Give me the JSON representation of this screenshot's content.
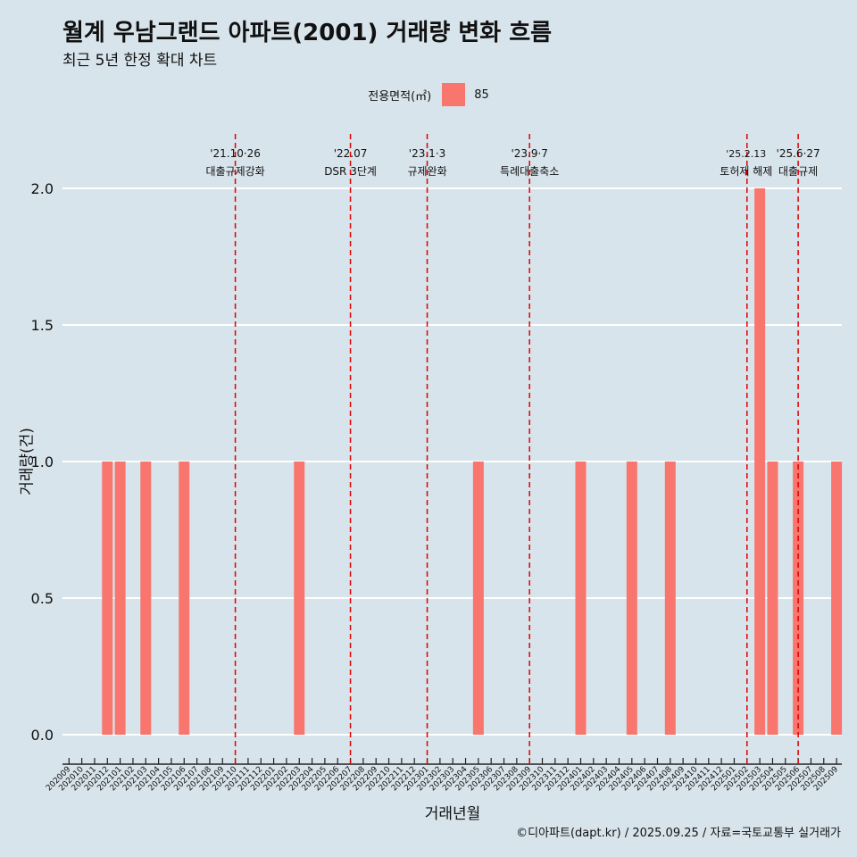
{
  "title": "월계 우남그랜드 아파트(2001) 거래량 변화 흐름",
  "subtitle": "최근 5년 한정 확대 차트",
  "legend": {
    "title": "전용면적(㎡)",
    "items": [
      {
        "label": "85",
        "color": "#f8766d"
      }
    ]
  },
  "caption": "©디아파트(dapt.kr) / 2025.09.25 / 자료=국토교통부 실거래가",
  "chart_data": {
    "type": "bar",
    "title": "월계 우남그랜드 아파트(2001) 거래량 변화 흐름",
    "subtitle": "최근 5년 한정 확대 차트",
    "xlabel": "거래년월",
    "ylabel": "거래량(건)",
    "ylim": [
      0,
      2
    ],
    "yticks": [
      "0.0",
      "0.5",
      "1.0",
      "1.5",
      "2.0"
    ],
    "categories": [
      "202009",
      "202010",
      "202011",
      "202012",
      "202101",
      "202102",
      "202103",
      "202104",
      "202105",
      "202106",
      "202107",
      "202108",
      "202109",
      "202110",
      "202111",
      "202112",
      "202201",
      "202202",
      "202203",
      "202204",
      "202205",
      "202206",
      "202207",
      "202208",
      "202209",
      "202210",
      "202211",
      "202212",
      "202301",
      "202302",
      "202303",
      "202304",
      "202305",
      "202306",
      "202307",
      "202308",
      "202309",
      "202310",
      "202311",
      "202312",
      "202401",
      "202402",
      "202403",
      "202404",
      "202405",
      "202406",
      "202407",
      "202408",
      "202409",
      "202410",
      "202411",
      "202412",
      "202501",
      "202502",
      "202503",
      "202504",
      "202505",
      "202506",
      "202507",
      "202508",
      "202509"
    ],
    "series": [
      {
        "name": "85",
        "color": "#f8766d",
        "values": [
          0,
          0,
          0,
          1,
          1,
          0,
          1,
          0,
          0,
          1,
          0,
          0,
          0,
          0,
          0,
          0,
          0,
          0,
          1,
          0,
          0,
          0,
          0,
          0,
          0,
          0,
          0,
          0,
          0,
          0,
          0,
          0,
          1,
          0,
          0,
          0,
          0,
          0,
          0,
          0,
          1,
          0,
          0,
          0,
          1,
          0,
          0,
          1,
          0,
          0,
          0,
          0,
          0,
          0,
          2,
          1,
          0,
          1,
          0,
          0,
          1
        ]
      }
    ],
    "annotations": [
      {
        "category": "202110",
        "date": "'21.10·26",
        "label": "대출규제강화"
      },
      {
        "category": "202207",
        "date": "'22.07",
        "label": "DSR 3단계"
      },
      {
        "category": "202301",
        "date": "'23.1·3",
        "label": "규제완화"
      },
      {
        "category": "202309",
        "date": "'23.9·7",
        "label": "특례대출축소"
      },
      {
        "category": "202502",
        "date": "'25.2.13",
        "label": "토허제 해제"
      },
      {
        "category": "202506",
        "date": "'25.6·27",
        "label": "대출규제"
      }
    ]
  }
}
